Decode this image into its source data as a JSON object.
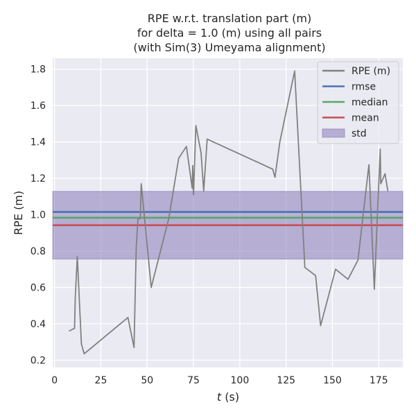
{
  "chart_data": {
    "type": "line",
    "title_lines": [
      "RPE w.r.t. translation part (m)",
      "for delta = 1.0 (m) using all pairs",
      "(with Sim(3) Umeyama alignment)"
    ],
    "xlabel_italic": "t",
    "xlabel_rest": " (s)",
    "ylabel": "RPE (m)",
    "xlim": [
      -1,
      188
    ],
    "ylim": [
      0.16,
      1.86
    ],
    "xticks": [
      0,
      25,
      50,
      75,
      100,
      125,
      150,
      175
    ],
    "yticks": [
      0.2,
      0.4,
      0.6,
      0.8,
      1.0,
      1.2,
      1.4,
      1.6,
      1.8
    ],
    "ytick_labels": [
      "0.2",
      "0.4",
      "0.6",
      "0.8",
      "1.0",
      "1.2",
      "1.4",
      "1.6",
      "1.8"
    ],
    "grid": true,
    "series": [
      {
        "name": "RPE (m)",
        "color": "#808080",
        "x": [
          7.8,
          10.8,
          11.2,
          12.3,
          14.5,
          16.0,
          39.6,
          42.9,
          44.1,
          45.0,
          46.3,
          46.8,
          52.2,
          61.7,
          67.0,
          71.2,
          74.3,
          74.6,
          75.0,
          76.3,
          79.1,
          80.5,
          82.4,
          117.8,
          119.0,
          121.6,
          129.6,
          135.1,
          140.9,
          143.6,
          151.7,
          158.4,
          163.8,
          169.7,
          172.6,
          175.8,
          176.1,
          178.4,
          179.9
        ],
        "y": [
          0.36,
          0.375,
          0.55,
          0.77,
          0.29,
          0.235,
          0.435,
          0.27,
          0.82,
          0.975,
          0.98,
          1.17,
          0.6,
          0.98,
          1.31,
          1.375,
          1.145,
          1.27,
          1.11,
          1.49,
          1.34,
          1.13,
          1.415,
          1.25,
          1.205,
          1.4,
          1.79,
          0.71,
          0.665,
          0.39,
          0.7,
          0.645,
          0.75,
          1.275,
          0.59,
          1.36,
          1.17,
          1.225,
          1.13
        ]
      }
    ],
    "stats": {
      "rmse": 1.015,
      "median": 0.983,
      "mean": 0.942,
      "std": 0.186,
      "std_band": [
        0.756,
        1.128
      ]
    },
    "legend_position": "top-right",
    "legend": [
      {
        "label": "RPE (m)",
        "kind": "line",
        "color": "#808080"
      },
      {
        "label": "rmse",
        "kind": "line",
        "color": "#4c72b0"
      },
      {
        "label": "median",
        "kind": "line",
        "color": "#55a868"
      },
      {
        "label": "mean",
        "kind": "line",
        "color": "#c44e52"
      },
      {
        "label": "std",
        "kind": "patch",
        "color": "#8172b3"
      }
    ]
  }
}
